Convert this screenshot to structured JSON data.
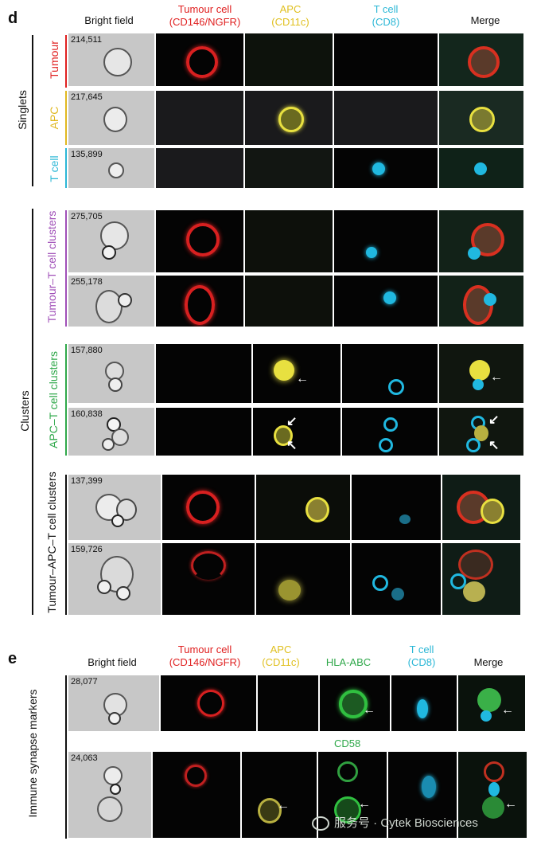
{
  "panel_d": {
    "letter": "d",
    "headers": [
      {
        "line1": "Bright field",
        "line2": "",
        "color": "#111111"
      },
      {
        "line1": "Tumour cell",
        "line2": "(CD146/NGFR)",
        "color": "#e02020"
      },
      {
        "line1": "APC",
        "line2": "(CD11c)",
        "color": "#e0c020"
      },
      {
        "line1": "T cell",
        "line2": "(CD8)",
        "color": "#2bb7d6"
      },
      {
        "line1": "Merge",
        "line2": "",
        "color": "#111111"
      }
    ],
    "singlets_label": "Singlets",
    "clusters_label": "Clusters",
    "row_labels": {
      "tumour": "Tumour",
      "apc": "APC",
      "tcell": "T cell",
      "tumour_t": "Tumour–T cell clusters",
      "apc_t": "APC–T cell clusters",
      "tumour_apc_t": "Tumour–APC–T cell clusters"
    },
    "row_label_colors": {
      "tumour": "#e02020",
      "apc": "#e0b820",
      "tcell": "#2bb7d6",
      "tumour_t": "#a04fb8",
      "apc_t": "#2fa84a",
      "tumour_apc_t": "#111111"
    },
    "ids": [
      "214,511",
      "217,645",
      "135,899",
      "275,705",
      "255,178",
      "157,880",
      "160,838",
      "137,399",
      "159,726"
    ]
  },
  "panel_e": {
    "letter": "e",
    "headers": [
      {
        "line1": "Bright field",
        "line2": "",
        "color": "#111111"
      },
      {
        "line1": "Tumour cell",
        "line2": "(CD146/NGFR)",
        "color": "#e02020"
      },
      {
        "line1": "APC",
        "line2": "(CD11c)",
        "color": "#e0c020"
      },
      {
        "line1": "HLA-ABC",
        "line2": "",
        "color": "#2fa84a"
      },
      {
        "line1": "T cell",
        "line2": "(CD8)",
        "color": "#2bb7d6"
      },
      {
        "line1": "Merge",
        "line2": "",
        "color": "#111111"
      }
    ],
    "group_label": "Immune synapse markers",
    "cd58_label": "CD58",
    "ids": [
      "28,077",
      "24,063"
    ]
  },
  "watermark": "服务号 · Cytek Biosciences",
  "colors": {
    "red": "#d82020",
    "yellow": "#e8e040",
    "cyan": "#20b8e0",
    "green": "#30c040",
    "brightfield": "#c7c7c7"
  }
}
